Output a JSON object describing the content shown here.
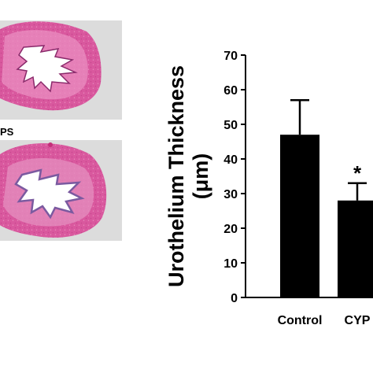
{
  "panels": {
    "bottom_label": "PS"
  },
  "chart_data": {
    "type": "bar",
    "categories": [
      "Control",
      "CYP"
    ],
    "values": [
      47,
      28
    ],
    "errors": [
      10,
      5
    ],
    "ylabel_line1": "Urothelium Thickness",
    "ylabel_line2": "(μm)",
    "ylim": [
      0,
      70
    ],
    "yticks": [
      0,
      10,
      20,
      30,
      40,
      50,
      60,
      70
    ],
    "annotations": [
      {
        "category": "CYP",
        "text": "*"
      }
    ],
    "bar_color": "#000000",
    "grid": false
  }
}
